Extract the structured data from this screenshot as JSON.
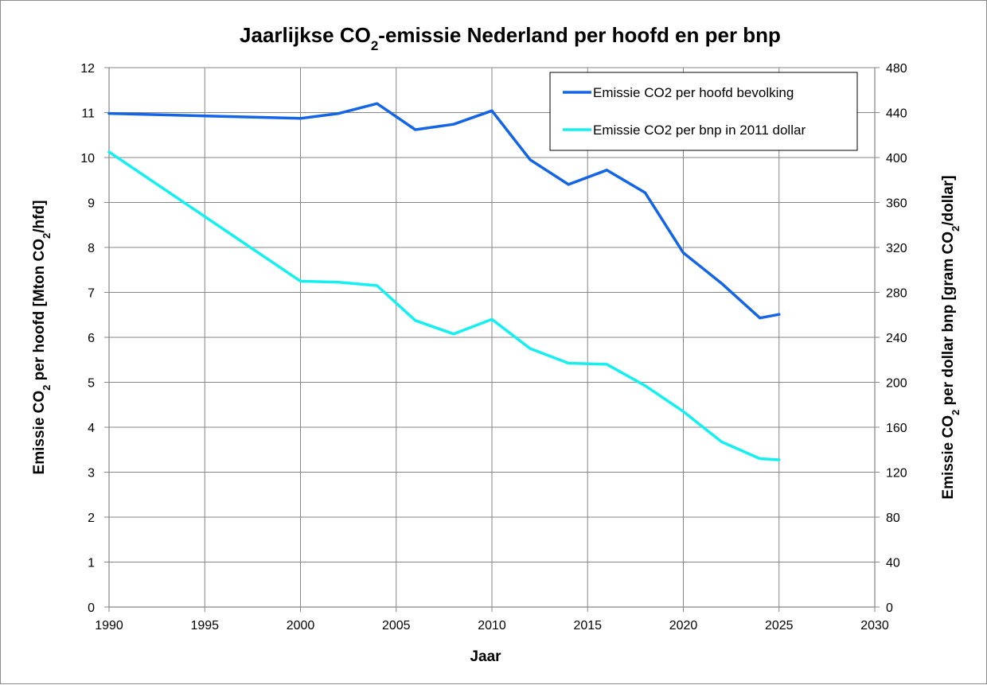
{
  "chart_data": {
    "type": "line",
    "title": {
      "pre": "Jaarlijkse CO",
      "sub": "2",
      "post": "-emissie Nederland per hoofd en per bnp"
    },
    "xlabel": "Jaar",
    "ylabel_left": {
      "pre": "Emissie CO",
      "sub": "2",
      "post": " per hoofd [Mton CO",
      "sub2": "2",
      "post2": "/hfd]"
    },
    "ylabel_right": {
      "pre": "Emissie CO",
      "sub": "2",
      "post": " per dollar bnp [gram CO",
      "sub2": "2",
      "post2": "/dollar]"
    },
    "xlim": [
      1990,
      2030
    ],
    "x_ticks": [
      1990,
      1995,
      2000,
      2005,
      2010,
      2015,
      2020,
      2025,
      2030
    ],
    "ylim_left": [
      0,
      12
    ],
    "y_ticks_left": [
      0,
      1,
      2,
      3,
      4,
      5,
      6,
      7,
      8,
      9,
      10,
      11,
      12
    ],
    "ylim_right": [
      0,
      480
    ],
    "y_ticks_right": [
      0,
      40,
      80,
      120,
      160,
      200,
      240,
      280,
      320,
      360,
      400,
      440,
      480
    ],
    "grid": true,
    "legend_position": "top-right",
    "series": [
      {
        "name": "Emissie CO2 per hoofd bevolking",
        "axis": "left",
        "color": "#1464e6",
        "x": [
          1990,
          2000,
          2002,
          2004,
          2006,
          2008,
          2010,
          2012,
          2014,
          2016,
          2018,
          2020,
          2022,
          2024,
          2025
        ],
        "y": [
          10.98,
          10.87,
          10.98,
          11.2,
          10.62,
          10.74,
          11.04,
          9.95,
          9.4,
          9.72,
          9.22,
          7.88,
          7.2,
          6.43,
          6.51
        ]
      },
      {
        "name": "Emissie CO2 per bnp in 2011 dollar",
        "axis": "right",
        "color": "#14f0f0",
        "x": [
          1990,
          2000,
          2002,
          2004,
          2006,
          2008,
          2010,
          2012,
          2014,
          2016,
          2018,
          2020,
          2022,
          2024,
          2025
        ],
        "y": [
          405,
          290,
          289,
          286,
          255,
          243,
          256,
          230,
          217,
          216,
          197,
          174,
          147,
          132,
          131
        ]
      }
    ]
  }
}
